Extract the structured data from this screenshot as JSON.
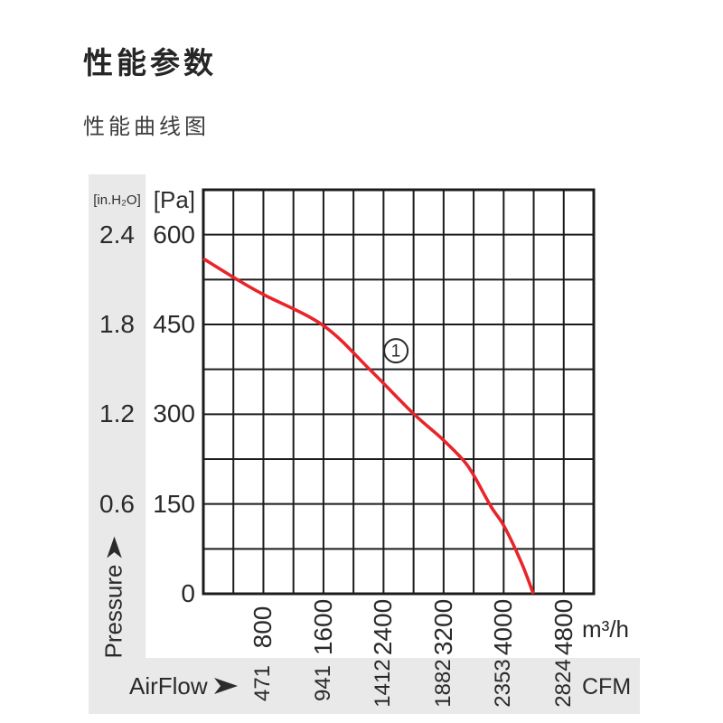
{
  "page": {
    "title": "性能参数",
    "subtitle": "性能曲线图"
  },
  "colors": {
    "curve_red": "#e8252b",
    "grid_line": "#1c1c1c",
    "axis_band_gray": "#e9e9e9",
    "text_dark": "#2a2a2a"
  },
  "chart_data": {
    "type": "line",
    "title": "性能曲线图",
    "grid": true,
    "legend_position": "none",
    "x_axis": {
      "name": "AirFlow",
      "unit_primary": "m³/h",
      "unit_secondary": "CFM",
      "min": 0,
      "max": 5200,
      "minor_step": 400,
      "ticks": [
        {
          "m3h": "800",
          "cfm": "471"
        },
        {
          "m3h": "1600",
          "cfm": "941"
        },
        {
          "m3h": "2400",
          "cfm": "1412"
        },
        {
          "m3h": "3200",
          "cfm": "1882"
        },
        {
          "m3h": "4000",
          "cfm": "2353"
        },
        {
          "m3h": "4800",
          "cfm": "2824"
        }
      ]
    },
    "y_axis": {
      "name": "Pressure",
      "unit_primary": "[Pa]",
      "unit_secondary": "[in.H₂O]",
      "min": 0,
      "max": 675,
      "minor_step": 75,
      "ticks": [
        {
          "pa": "600",
          "inh2o": "2.4"
        },
        {
          "pa": "450",
          "inh2o": "1.8"
        },
        {
          "pa": "300",
          "inh2o": "1.2"
        },
        {
          "pa": "150",
          "inh2o": "0.6"
        },
        {
          "pa": "0",
          "inh2o": ""
        }
      ]
    },
    "series": [
      {
        "name": "1",
        "color": "#e8252b",
        "marker_label_pos": [
          2565,
          406
        ],
        "points": [
          [
            0,
            560
          ],
          [
            450,
            525
          ],
          [
            800,
            500
          ],
          [
            1600,
            448
          ],
          [
            2230,
            373
          ],
          [
            2790,
            302
          ],
          [
            3170,
            260
          ],
          [
            3470,
            222
          ],
          [
            3610,
            196
          ],
          [
            3830,
            146
          ],
          [
            4010,
            112
          ],
          [
            4240,
            51
          ],
          [
            4395,
            0
          ]
        ]
      }
    ]
  }
}
